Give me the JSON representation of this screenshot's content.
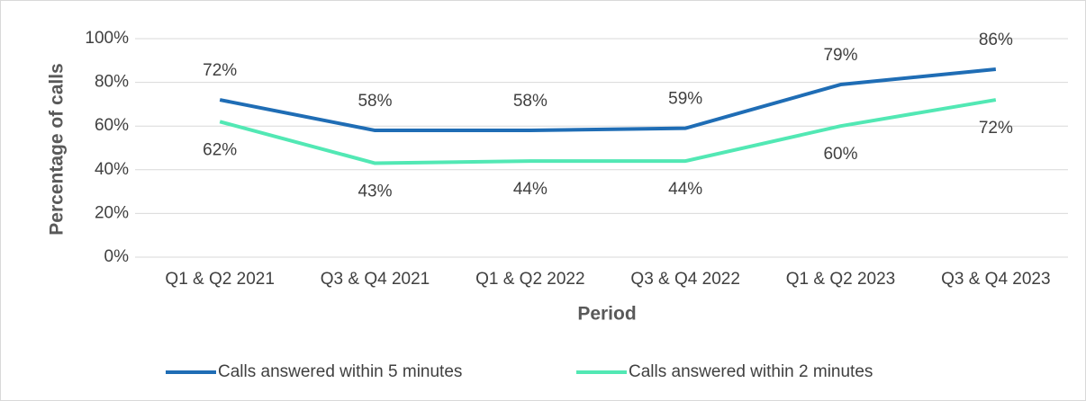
{
  "chart_data": {
    "type": "line",
    "categories": [
      "Q1 & Q2 2021",
      "Q3 & Q4 2021",
      "Q1 & Q2 2022",
      "Q3 & Q4 2022",
      "Q1 & Q2 2023",
      "Q3 & Q4 2023"
    ],
    "series": [
      {
        "name": "Calls answered within 5 minutes",
        "color": "#1f6db5",
        "values": [
          72,
          58,
          58,
          59,
          79,
          86
        ],
        "value_labels": [
          "72%",
          "58%",
          "58%",
          "59%",
          "79%",
          "86%"
        ]
      },
      {
        "name": "Calls answered within 2 minutes",
        "color": "#52e8b4",
        "values": [
          62,
          43,
          44,
          44,
          60,
          72
        ],
        "value_labels": [
          "62%",
          "43%",
          "44%",
          "44%",
          "60%",
          "72%"
        ]
      }
    ],
    "ylim": [
      0,
      100
    ],
    "yticks": [
      {
        "value": 0,
        "label": "0%"
      },
      {
        "value": 20,
        "label": "20%"
      },
      {
        "value": 40,
        "label": "40%"
      },
      {
        "value": 60,
        "label": "60%"
      },
      {
        "value": 80,
        "label": "80%"
      },
      {
        "value": 100,
        "label": "100%"
      }
    ],
    "xlabel": "Period",
    "ylabel": "Percentage of calls",
    "grid": true,
    "legend": "bottom"
  }
}
